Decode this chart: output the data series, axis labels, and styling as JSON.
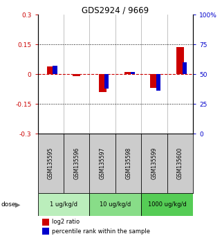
{
  "title": "GDS2924 / 9669",
  "samples": [
    "GSM135595",
    "GSM135596",
    "GSM135597",
    "GSM135598",
    "GSM135599",
    "GSM135600"
  ],
  "log2_ratio": [
    0.04,
    -0.01,
    -0.09,
    0.01,
    -0.07,
    0.135
  ],
  "percentile_rank_raw": [
    57,
    50,
    38,
    52,
    36,
    60
  ],
  "ylim_left": [
    -0.3,
    0.3
  ],
  "ylim_right": [
    0,
    100
  ],
  "yticks_left": [
    -0.3,
    -0.15,
    0.0,
    0.15,
    0.3
  ],
  "yticks_right": [
    0,
    25,
    50,
    75,
    100
  ],
  "hline_dotted": [
    0.15,
    -0.15
  ],
  "doses": [
    {
      "label": "1 ug/kg/d",
      "samples": [
        0,
        1
      ],
      "color": "#bbeebc"
    },
    {
      "label": "10 ug/kg/d",
      "samples": [
        2,
        3
      ],
      "color": "#88dd88"
    },
    {
      "label": "1000 ug/kg/d",
      "samples": [
        4,
        5
      ],
      "color": "#55cc55"
    }
  ],
  "red_color": "#cc0000",
  "blue_color": "#0000cc",
  "dashed_red": "#cc0000",
  "bg_color": "#ffffff",
  "sample_bg": "#cccccc",
  "left_tick_color": "#cc0000",
  "right_tick_color": "#0000cc",
  "bar_width": 0.3
}
